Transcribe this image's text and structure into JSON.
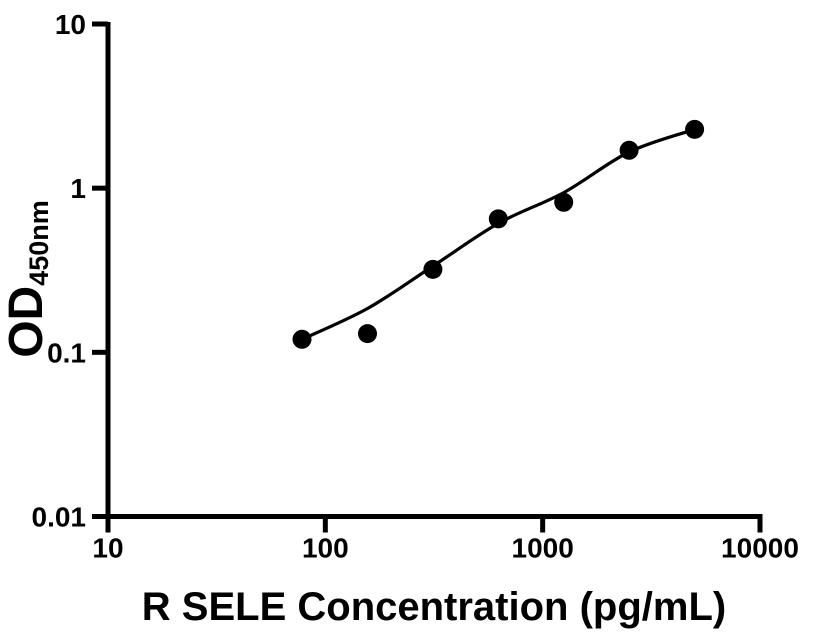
{
  "chart_data": {
    "type": "scatter",
    "title": "",
    "xlabel": "R SELE Concentration (pg/mL)",
    "ylabel": "OD",
    "ylabel_subscript": "450nm",
    "x_scale": "log",
    "y_scale": "log",
    "xlim": [
      10,
      10000
    ],
    "ylim": [
      0.01,
      10
    ],
    "grid": false,
    "legend": false,
    "x_ticks": [
      {
        "value": 10,
        "label": "10"
      },
      {
        "value": 100,
        "label": "100"
      },
      {
        "value": 1000,
        "label": "1000"
      },
      {
        "value": 10000,
        "label": "10000"
      }
    ],
    "y_ticks": [
      {
        "value": 10,
        "label": "10"
      },
      {
        "value": 1,
        "label": "1"
      },
      {
        "value": 0.1,
        "label": "0.1"
      },
      {
        "value": 0.01,
        "label": "0.01"
      }
    ],
    "series": [
      {
        "name": "standard-data-points",
        "type": "scatter",
        "marker": "filled-circle",
        "color": "#000000",
        "points": [
          {
            "x": 78.125,
            "y": 0.12
          },
          {
            "x": 156.25,
            "y": 0.13
          },
          {
            "x": 312.5,
            "y": 0.32
          },
          {
            "x": 625,
            "y": 0.65
          },
          {
            "x": 1250,
            "y": 0.82
          },
          {
            "x": 2500,
            "y": 1.7
          },
          {
            "x": 5000,
            "y": 2.28
          }
        ]
      },
      {
        "name": "4pl-fit-curve",
        "type": "line",
        "color": "#000000",
        "points": [
          {
            "x": 78.125,
            "y": 0.12
          },
          {
            "x": 156.25,
            "y": 0.185
          },
          {
            "x": 312.5,
            "y": 0.335
          },
          {
            "x": 625,
            "y": 0.61
          },
          {
            "x": 1250,
            "y": 0.94
          },
          {
            "x": 2500,
            "y": 1.66
          },
          {
            "x": 5000,
            "y": 2.28
          }
        ]
      }
    ],
    "colors": {
      "foreground": "#000000",
      "background": "#ffffff"
    }
  }
}
